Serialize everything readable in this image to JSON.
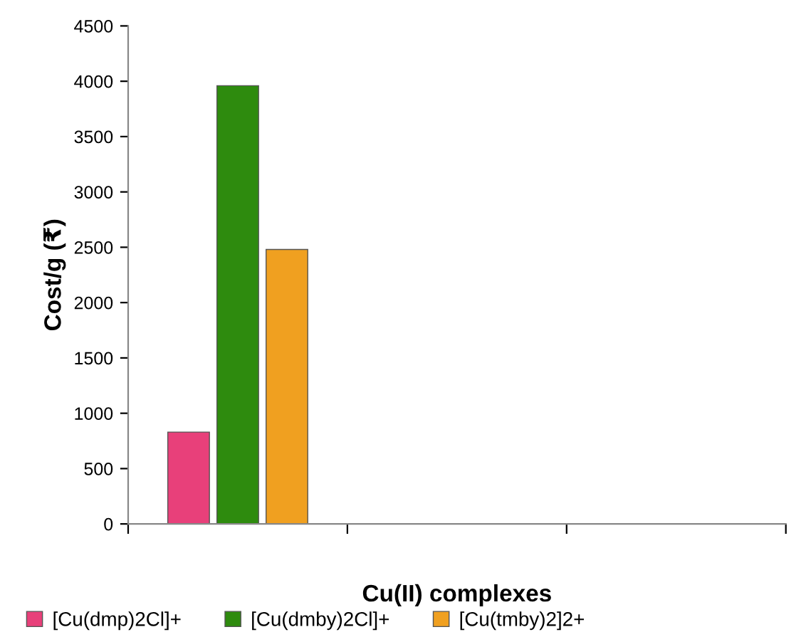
{
  "chart_data": {
    "type": "bar",
    "xlabel": "Cu(II) complexes",
    "ylabel": "Cost/g (₹)",
    "categories": [
      null,
      null,
      null
    ],
    "series": [
      {
        "name": "[Cu(dmp)2Cl]+",
        "color": "#e8407a",
        "values": [
          830,
          null,
          null
        ]
      },
      {
        "name": "[Cu(dmby)2Cl]+",
        "color": "#2e8b0e",
        "values": [
          3960,
          null,
          null
        ]
      },
      {
        "name": "[Cu(tmby)2]2+",
        "color": "#f0a020",
        "values": [
          2480,
          null,
          null
        ]
      }
    ],
    "ylim": [
      0,
      4500
    ],
    "yticks": [
      0,
      500,
      1000,
      1500,
      2000,
      2500,
      3000,
      3500,
      4000,
      4500
    ],
    "grid": false,
    "legend": "bottom"
  }
}
